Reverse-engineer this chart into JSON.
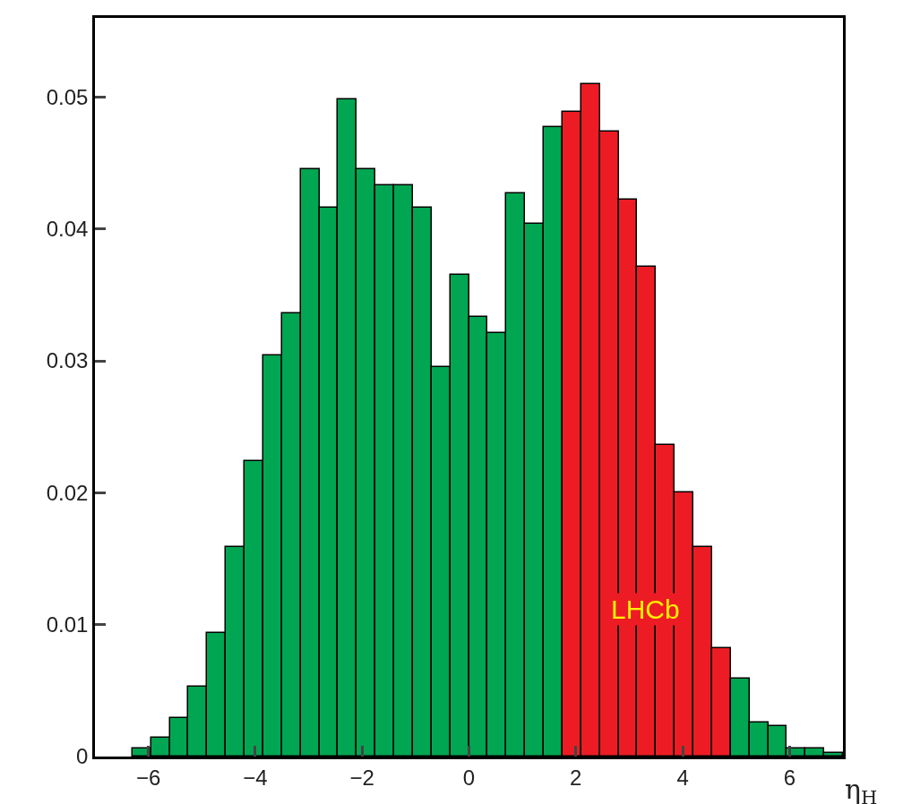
{
  "chart_data": {
    "type": "histogram",
    "xlabel": "η$_{H}$",
    "bins": [
      -7,
      -6.65,
      -6.3,
      -5.95,
      -5.6,
      -5.25,
      -4.9,
      -4.55,
      -4.2,
      -3.85,
      -3.5,
      -3.15,
      -2.8,
      -2.45,
      -2.1,
      -1.75,
      -1.4,
      -1.05,
      -0.7,
      -0.35,
      0,
      0.35,
      0.7,
      1.05,
      1.4,
      1.75,
      2.1,
      2.45,
      2.8,
      3.15,
      3.5,
      3.85,
      4.2,
      4.55,
      4.9,
      5.25,
      5.6,
      5.95,
      6.3,
      6.65,
      7
    ],
    "values": [
      0,
      0,
      0.0006,
      0.0014,
      0.0029,
      0.0053,
      0.0094,
      0.0159,
      0.0224,
      0.0304,
      0.0336,
      0.0445,
      0.0416,
      0.0498,
      0.0445,
      0.0433,
      0.0433,
      0.0416,
      0.0295,
      0.0365,
      0.0333,
      0.0321,
      0.0427,
      0.0404,
      0.0477,
      0.0489,
      0.051,
      0.0474,
      0.0422,
      0.0371,
      0.0236,
      0.02,
      0.0159,
      0.0082,
      0.0059,
      0.0026,
      0.0023,
      0.0006,
      0.0006,
      0.0003
    ],
    "colors": [
      "#00a651",
      "#00a651",
      "#00a651",
      "#00a651",
      "#00a651",
      "#00a651",
      "#00a651",
      "#00a651",
      "#00a651",
      "#00a651",
      "#00a651",
      "#00a651",
      "#00a651",
      "#00a651",
      "#00a651",
      "#00a651",
      "#00a651",
      "#00a651",
      "#00a651",
      "#00a651",
      "#00a651",
      "#00a651",
      "#00a651",
      "#00a651",
      "#00a651",
      "#ed1c24",
      "#ed1c24",
      "#ed1c24",
      "#ed1c24",
      "#ed1c24",
      "#ed1c24",
      "#ed1c24",
      "#ed1c24",
      "#ed1c24",
      "#00a651",
      "#00a651",
      "#00a651",
      "#00a651",
      "#00a651",
      "#00a651"
    ],
    "annotations": [
      "LHCb"
    ],
    "xlim": [
      -7,
      7
    ],
    "ylim": [
      0,
      0.056
    ],
    "xticks": [
      {
        "value": -6,
        "label": "−6"
      },
      {
        "value": -4,
        "label": "−4"
      },
      {
        "value": -2,
        "label": "−2"
      },
      0,
      2,
      4,
      6
    ],
    "yticks": [
      0,
      {
        "value": 0.01,
        "label": "0.01"
      },
      {
        "value": 0.02,
        "label": "0.02"
      },
      {
        "value": 0.03,
        "label": "0.03"
      },
      {
        "value": 0.04,
        "label": "0.04"
      },
      {
        "value": 0.05,
        "label": "0.05"
      }
    ]
  }
}
